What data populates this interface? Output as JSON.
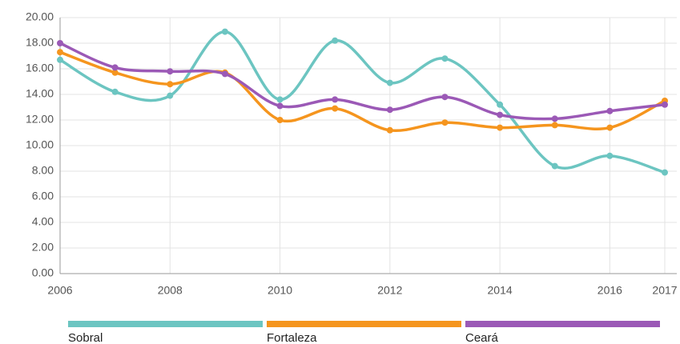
{
  "chart_data": {
    "type": "line",
    "x": [
      2006,
      2007,
      2008,
      2009,
      2010,
      2011,
      2012,
      2013,
      2014,
      2015,
      2016,
      2017
    ],
    "series": [
      {
        "name": "Sobral",
        "color": "#6cc5c1",
        "values": [
          16.7,
          14.2,
          13.9,
          18.9,
          13.6,
          18.2,
          14.9,
          16.8,
          13.2,
          8.4,
          9.2,
          7.9
        ]
      },
      {
        "name": "Fortaleza",
        "color": "#f5951e",
        "values": [
          17.3,
          15.7,
          14.8,
          15.7,
          12.0,
          12.9,
          11.2,
          11.8,
          11.4,
          11.6,
          11.4,
          13.5
        ]
      },
      {
        "name": "Ceará",
        "color": "#9b59b6",
        "values": [
          18.0,
          16.1,
          15.8,
          15.6,
          13.1,
          13.6,
          12.8,
          13.8,
          12.4,
          12.1,
          12.7,
          13.2
        ]
      }
    ],
    "xlim": [
      2006,
      2017
    ],
    "xticks": [
      2006,
      2008,
      2010,
      2012,
      2014,
      2016,
      2017
    ],
    "ylim": [
      0,
      20
    ],
    "yticks": [
      {
        "value": 0,
        "label": "0.00"
      },
      {
        "value": 2,
        "label": "2.00"
      },
      {
        "value": 4,
        "label": "4.00"
      },
      {
        "value": 6,
        "label": "6.00"
      },
      {
        "value": 8,
        "label": "8.00"
      },
      {
        "value": 10,
        "label": "10.00"
      },
      {
        "value": 12,
        "label": "12.00"
      },
      {
        "value": 14,
        "label": "14.00"
      },
      {
        "value": 16,
        "label": "16.00"
      },
      {
        "value": 18,
        "label": "18.00"
      },
      {
        "value": 20,
        "label": "20.00"
      }
    ],
    "grid": true
  }
}
